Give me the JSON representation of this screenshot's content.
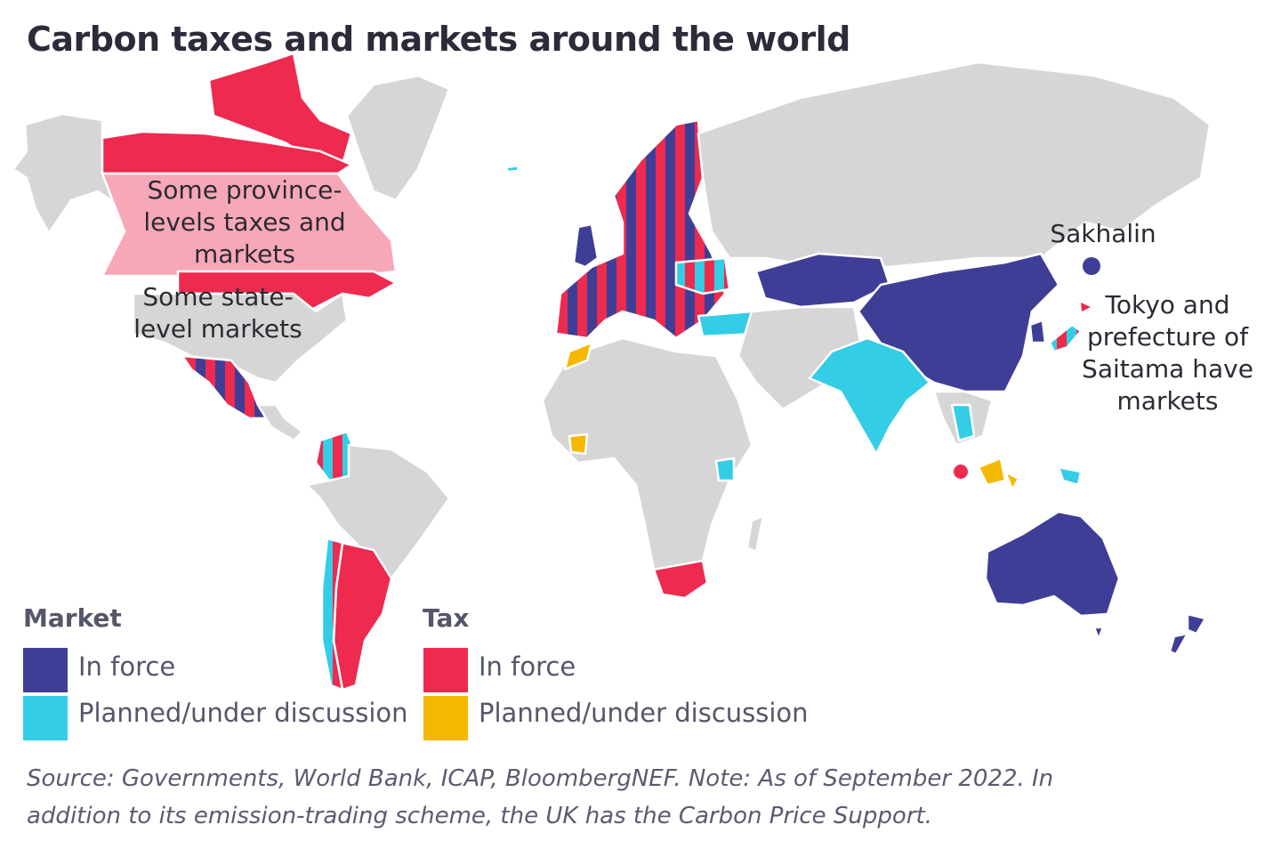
{
  "title": "Carbon taxes and markets around the world",
  "colors": {
    "market_in_force": "#3f3e96",
    "market_planned": "#34cde6",
    "tax_in_force": "#ee2a4f",
    "tax_planned": "#f5b800",
    "subnational": "#f7a8b8",
    "no_policy": "#d6d6d6"
  },
  "annotations": {
    "canada_line1": "Some province-",
    "canada_line2": "levels taxes and",
    "canada_line3": "markets",
    "us_line1": "Some state-",
    "us_line2": "level markets",
    "sakhalin": "Sakhalin",
    "tokyo_line1": "Tokyo and",
    "tokyo_line2": "prefecture of",
    "tokyo_line3": "Saitama have",
    "tokyo_line4": "markets"
  },
  "legend": {
    "market_heading": "Market",
    "tax_heading": "Tax",
    "market_in_force": "In force",
    "market_planned": "Planned/under discussion",
    "tax_in_force": "In force",
    "tax_planned": "Planned/under discussion"
  },
  "source": {
    "line1": "Source: Governments, World Bank, ICAP, BloombergNEF. Note: As of September 2022. In",
    "line2": "addition to its emission-trading scheme, the UK has the Carbon Price Support."
  }
}
